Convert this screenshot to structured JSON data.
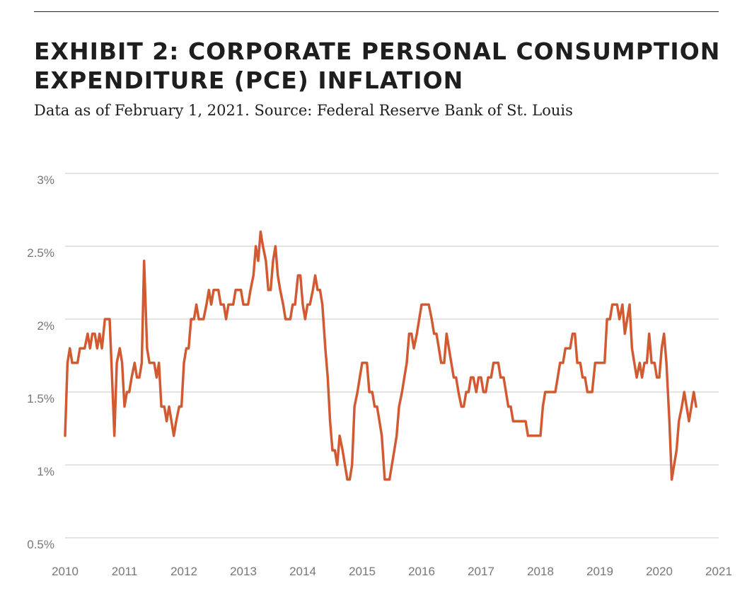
{
  "header": {
    "title": "EXHIBIT 2: CORPORATE PERSONAL CONSUMPTION EXPENDITURE (PCE) INFLATION",
    "subtitle": "Data as of February 1, 2021. Source: Federal Reserve Bank of St. Louis"
  },
  "colors": {
    "line": "#d25a32",
    "grid": "#c8c8c8",
    "text": "#1e1e1e",
    "tick": "#777777"
  },
  "chart_data": {
    "type": "line",
    "title": "EXHIBIT 2: CORPORATE PERSONAL CONSUMPTION EXPENDITURE (PCE) INFLATION",
    "xlabel": "",
    "ylabel": "",
    "xlim": [
      2010,
      2021
    ],
    "ylim": [
      0.5,
      3
    ],
    "grid": true,
    "legend": "none",
    "x_ticks": [
      "2010",
      "2011",
      "2012",
      "2013",
      "2014",
      "2015",
      "2016",
      "2017",
      "2018",
      "2019",
      "2020",
      "2021"
    ],
    "y_ticks": [
      {
        "value": 0.5,
        "label": "0.5%"
      },
      {
        "value": 1,
        "label": "1%"
      },
      {
        "value": 1.5,
        "label": "1.5%"
      },
      {
        "value": 2,
        "label": "2%"
      },
      {
        "value": 2.5,
        "label": "2.5%"
      },
      {
        "value": 3,
        "label": "3%"
      }
    ],
    "series": [
      {
        "values": [
          [
            2010.0,
            1.2
          ],
          [
            2010.04,
            1.7
          ],
          [
            2010.08,
            1.8
          ],
          [
            2010.12,
            1.7
          ],
          [
            2010.17,
            1.7
          ],
          [
            2010.21,
            1.7
          ],
          [
            2010.25,
            1.8
          ],
          [
            2010.29,
            1.8
          ],
          [
            2010.33,
            1.8
          ],
          [
            2010.38,
            1.9
          ],
          [
            2010.42,
            1.8
          ],
          [
            2010.46,
            1.9
          ],
          [
            2010.5,
            1.9
          ],
          [
            2010.54,
            1.8
          ],
          [
            2010.58,
            1.9
          ],
          [
            2010.62,
            1.8
          ],
          [
            2010.67,
            2.0
          ],
          [
            2010.71,
            2.0
          ],
          [
            2010.75,
            2.0
          ],
          [
            2010.79,
            1.6
          ],
          [
            2010.83,
            1.2
          ],
          [
            2010.87,
            1.7
          ],
          [
            2010.92,
            1.8
          ],
          [
            2010.96,
            1.7
          ],
          [
            2011.0,
            1.4
          ],
          [
            2011.04,
            1.5
          ],
          [
            2011.08,
            1.5
          ],
          [
            2011.12,
            1.6
          ],
          [
            2011.17,
            1.7
          ],
          [
            2011.21,
            1.6
          ],
          [
            2011.25,
            1.6
          ],
          [
            2011.29,
            1.7
          ],
          [
            2011.33,
            2.4
          ],
          [
            2011.38,
            1.8
          ],
          [
            2011.42,
            1.7
          ],
          [
            2011.46,
            1.7
          ],
          [
            2011.5,
            1.7
          ],
          [
            2011.54,
            1.6
          ],
          [
            2011.58,
            1.7
          ],
          [
            2011.62,
            1.4
          ],
          [
            2011.67,
            1.4
          ],
          [
            2011.71,
            1.3
          ],
          [
            2011.75,
            1.4
          ],
          [
            2011.79,
            1.3
          ],
          [
            2011.83,
            1.2
          ],
          [
            2011.87,
            1.3
          ],
          [
            2011.92,
            1.4
          ],
          [
            2011.96,
            1.4
          ],
          [
            2012.0,
            1.7
          ],
          [
            2012.04,
            1.8
          ],
          [
            2012.08,
            1.8
          ],
          [
            2012.12,
            2.0
          ],
          [
            2012.17,
            2.0
          ],
          [
            2012.21,
            2.1
          ],
          [
            2012.25,
            2.0
          ],
          [
            2012.29,
            2.0
          ],
          [
            2012.33,
            2.0
          ],
          [
            2012.38,
            2.1
          ],
          [
            2012.42,
            2.2
          ],
          [
            2012.46,
            2.1
          ],
          [
            2012.5,
            2.2
          ],
          [
            2012.54,
            2.2
          ],
          [
            2012.58,
            2.2
          ],
          [
            2012.62,
            2.1
          ],
          [
            2012.67,
            2.1
          ],
          [
            2012.71,
            2.0
          ],
          [
            2012.75,
            2.1
          ],
          [
            2012.79,
            2.1
          ],
          [
            2012.83,
            2.1
          ],
          [
            2012.87,
            2.2
          ],
          [
            2012.92,
            2.2
          ],
          [
            2012.96,
            2.2
          ],
          [
            2013.0,
            2.1
          ],
          [
            2013.04,
            2.1
          ],
          [
            2013.08,
            2.1
          ],
          [
            2013.12,
            2.2
          ],
          [
            2013.17,
            2.3
          ],
          [
            2013.21,
            2.5
          ],
          [
            2013.25,
            2.4
          ],
          [
            2013.29,
            2.6
          ],
          [
            2013.33,
            2.5
          ],
          [
            2013.38,
            2.4
          ],
          [
            2013.42,
            2.2
          ],
          [
            2013.46,
            2.2
          ],
          [
            2013.5,
            2.4
          ],
          [
            2013.54,
            2.5
          ],
          [
            2013.58,
            2.3
          ],
          [
            2013.62,
            2.2
          ],
          [
            2013.67,
            2.1
          ],
          [
            2013.71,
            2.0
          ],
          [
            2013.75,
            2.0
          ],
          [
            2013.79,
            2.0
          ],
          [
            2013.83,
            2.1
          ],
          [
            2013.87,
            2.1
          ],
          [
            2013.92,
            2.3
          ],
          [
            2013.96,
            2.3
          ],
          [
            2014.0,
            2.1
          ],
          [
            2014.04,
            2.0
          ],
          [
            2014.08,
            2.1
          ],
          [
            2014.12,
            2.1
          ],
          [
            2014.17,
            2.2
          ],
          [
            2014.21,
            2.3
          ],
          [
            2014.25,
            2.2
          ],
          [
            2014.29,
            2.2
          ],
          [
            2014.33,
            2.1
          ],
          [
            2014.38,
            1.8
          ],
          [
            2014.42,
            1.6
          ],
          [
            2014.46,
            1.3
          ],
          [
            2014.5,
            1.1
          ],
          [
            2014.54,
            1.1
          ],
          [
            2014.58,
            1.0
          ],
          [
            2014.62,
            1.2
          ],
          [
            2014.67,
            1.1
          ],
          [
            2014.71,
            1.0
          ],
          [
            2014.75,
            0.9
          ],
          [
            2014.79,
            0.9
          ],
          [
            2014.83,
            1.0
          ],
          [
            2014.87,
            1.4
          ],
          [
            2014.92,
            1.5
          ],
          [
            2014.96,
            1.6
          ],
          [
            2015.0,
            1.7
          ],
          [
            2015.04,
            1.7
          ],
          [
            2015.08,
            1.7
          ],
          [
            2015.12,
            1.5
          ],
          [
            2015.17,
            1.5
          ],
          [
            2015.21,
            1.4
          ],
          [
            2015.25,
            1.4
          ],
          [
            2015.29,
            1.3
          ],
          [
            2015.33,
            1.2
          ],
          [
            2015.38,
            0.9
          ],
          [
            2015.42,
            0.9
          ],
          [
            2015.46,
            0.9
          ],
          [
            2015.5,
            1.0
          ],
          [
            2015.54,
            1.1
          ],
          [
            2015.58,
            1.2
          ],
          [
            2015.62,
            1.4
          ],
          [
            2015.67,
            1.5
          ],
          [
            2015.71,
            1.6
          ],
          [
            2015.75,
            1.7
          ],
          [
            2015.79,
            1.9
          ],
          [
            2015.83,
            1.9
          ],
          [
            2015.87,
            1.8
          ],
          [
            2015.92,
            1.9
          ],
          [
            2015.96,
            2.0
          ],
          [
            2016.0,
            2.1
          ],
          [
            2016.04,
            2.1
          ],
          [
            2016.08,
            2.1
          ],
          [
            2016.12,
            2.1
          ],
          [
            2016.17,
            2.0
          ],
          [
            2016.21,
            1.9
          ],
          [
            2016.25,
            1.9
          ],
          [
            2016.29,
            1.8
          ],
          [
            2016.33,
            1.7
          ],
          [
            2016.38,
            1.7
          ],
          [
            2016.42,
            1.9
          ],
          [
            2016.46,
            1.8
          ],
          [
            2016.5,
            1.7
          ],
          [
            2016.54,
            1.6
          ],
          [
            2016.58,
            1.6
          ],
          [
            2016.62,
            1.5
          ],
          [
            2016.67,
            1.4
          ],
          [
            2016.71,
            1.4
          ],
          [
            2016.75,
            1.5
          ],
          [
            2016.79,
            1.5
          ],
          [
            2016.83,
            1.6
          ],
          [
            2016.87,
            1.6
          ],
          [
            2016.92,
            1.5
          ],
          [
            2016.96,
            1.6
          ],
          [
            2017.0,
            1.6
          ],
          [
            2017.04,
            1.5
          ],
          [
            2017.08,
            1.5
          ],
          [
            2017.12,
            1.6
          ],
          [
            2017.17,
            1.6
          ],
          [
            2017.21,
            1.7
          ],
          [
            2017.25,
            1.7
          ],
          [
            2017.29,
            1.7
          ],
          [
            2017.33,
            1.6
          ],
          [
            2017.38,
            1.6
          ],
          [
            2017.42,
            1.5
          ],
          [
            2017.46,
            1.4
          ],
          [
            2017.5,
            1.4
          ],
          [
            2017.54,
            1.3
          ],
          [
            2017.58,
            1.3
          ],
          [
            2017.62,
            1.3
          ],
          [
            2017.67,
            1.3
          ],
          [
            2017.71,
            1.3
          ],
          [
            2017.75,
            1.3
          ],
          [
            2017.79,
            1.2
          ],
          [
            2017.83,
            1.2
          ],
          [
            2017.87,
            1.2
          ],
          [
            2017.92,
            1.2
          ],
          [
            2017.96,
            1.2
          ],
          [
            2018.0,
            1.2
          ],
          [
            2018.04,
            1.4
          ],
          [
            2018.08,
            1.5
          ],
          [
            2018.12,
            1.5
          ],
          [
            2018.17,
            1.5
          ],
          [
            2018.21,
            1.5
          ],
          [
            2018.25,
            1.5
          ],
          [
            2018.29,
            1.6
          ],
          [
            2018.33,
            1.7
          ],
          [
            2018.38,
            1.7
          ],
          [
            2018.42,
            1.8
          ],
          [
            2018.46,
            1.8
          ],
          [
            2018.5,
            1.8
          ],
          [
            2018.54,
            1.9
          ],
          [
            2018.58,
            1.9
          ],
          [
            2018.62,
            1.7
          ],
          [
            2018.67,
            1.7
          ],
          [
            2018.71,
            1.6
          ],
          [
            2018.75,
            1.6
          ],
          [
            2018.79,
            1.5
          ],
          [
            2018.83,
            1.5
          ],
          [
            2018.87,
            1.5
          ],
          [
            2018.92,
            1.7
          ],
          [
            2018.96,
            1.7
          ],
          [
            2019.0,
            1.7
          ],
          [
            2019.04,
            1.7
          ],
          [
            2019.08,
            1.7
          ],
          [
            2019.12,
            2.0
          ],
          [
            2019.17,
            2.0
          ],
          [
            2019.21,
            2.1
          ],
          [
            2019.25,
            2.1
          ],
          [
            2019.29,
            2.1
          ],
          [
            2019.33,
            2.0
          ],
          [
            2019.38,
            2.1
          ],
          [
            2019.42,
            1.9
          ],
          [
            2019.46,
            2.0
          ],
          [
            2019.5,
            2.1
          ],
          [
            2019.54,
            1.8
          ],
          [
            2019.58,
            1.7
          ],
          [
            2019.62,
            1.6
          ],
          [
            2019.67,
            1.7
          ],
          [
            2019.71,
            1.6
          ],
          [
            2019.75,
            1.7
          ],
          [
            2019.79,
            1.7
          ],
          [
            2019.83,
            1.9
          ],
          [
            2019.87,
            1.7
          ],
          [
            2019.92,
            1.7
          ],
          [
            2019.96,
            1.6
          ],
          [
            2020.0,
            1.6
          ],
          [
            2020.04,
            1.8
          ],
          [
            2020.08,
            1.9
          ],
          [
            2020.12,
            1.7
          ],
          [
            2020.17,
            1.3
          ],
          [
            2020.21,
            0.9
          ],
          [
            2020.25,
            1.0
          ],
          [
            2020.29,
            1.1
          ],
          [
            2020.33,
            1.3
          ],
          [
            2020.38,
            1.4
          ],
          [
            2020.42,
            1.5
          ],
          [
            2020.46,
            1.4
          ],
          [
            2020.5,
            1.3
          ],
          [
            2020.54,
            1.4
          ],
          [
            2020.58,
            1.5
          ],
          [
            2020.62,
            1.4
          ]
        ]
      }
    ]
  }
}
